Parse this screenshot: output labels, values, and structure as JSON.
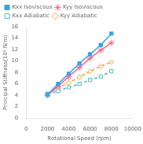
{
  "chart_data": {
    "type": "line",
    "xlabel": "Rotational Speed (rpm)",
    "ylabel": "Principal Stiffness(10⁵ N/m)",
    "x": [
      2000,
      3000,
      4000,
      5000,
      6000,
      7000,
      8000
    ],
    "series": [
      {
        "name": "Kxx Isoviscous",
        "values": [
          4.1,
          6.0,
          7.8,
          9.6,
          11.2,
          12.8,
          14.8
        ],
        "marker": "square",
        "line_style": "solid"
      },
      {
        "name": "Kyy Isoviscous",
        "values": [
          4.0,
          5.6,
          7.3,
          8.9,
          10.5,
          11.9,
          13.2
        ],
        "marker": "star",
        "line_style": "solid"
      },
      {
        "name": "Kxx Adiabatic",
        "values": [
          4.2,
          4.8,
          5.4,
          6.0,
          6.7,
          7.3,
          8.2
        ],
        "marker": "open-square",
        "line_style": "dashed"
      },
      {
        "name": "Kyy Adiabatic",
        "values": [
          4.4,
          5.3,
          6.2,
          7.2,
          8.2,
          9.1,
          9.8
        ],
        "marker": "open-diamond",
        "line_style": "dashed"
      }
    ],
    "xlim": [
      0,
      10000
    ],
    "ylim": [
      0,
      16
    ],
    "xticks": [
      0,
      2000,
      4000,
      6000,
      8000,
      10000
    ],
    "yticks": [
      0,
      2,
      4,
      6,
      8,
      10,
      12,
      14,
      16
    ],
    "grid": false,
    "legend": "top"
  }
}
